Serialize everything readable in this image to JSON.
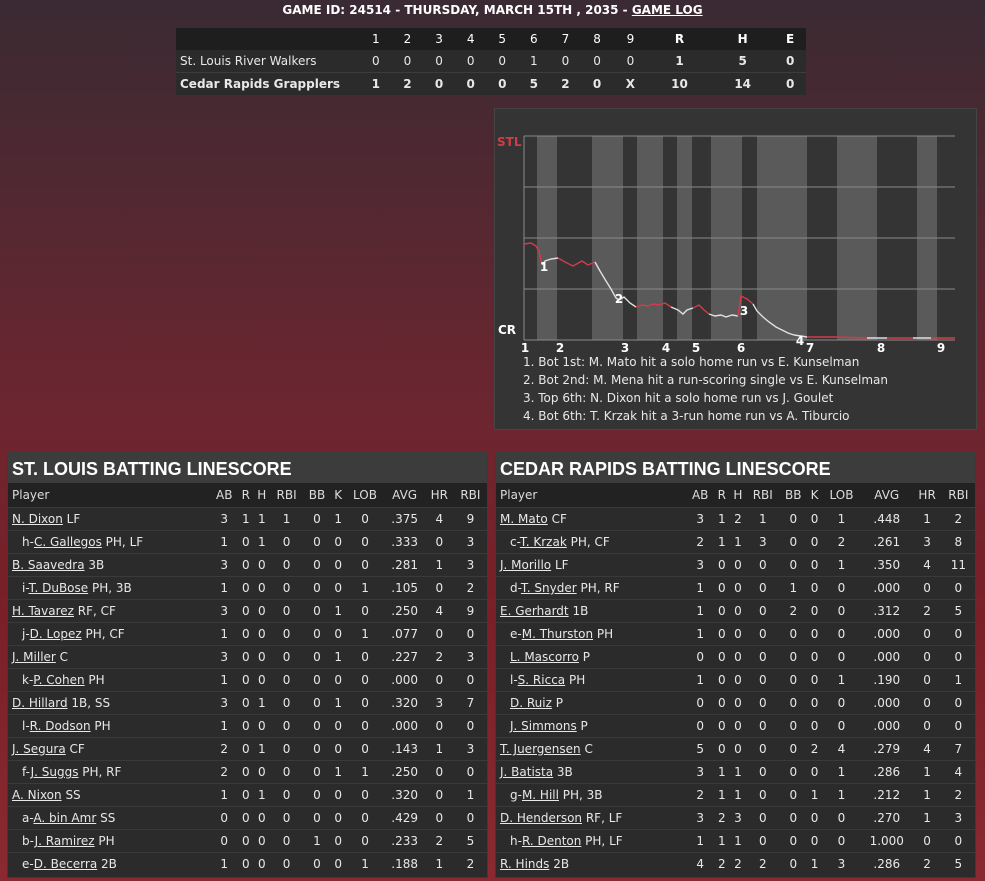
{
  "header": {
    "prefix": "GAME ID: 24514 - THURSDAY, MARCH 15TH , 2035 - ",
    "link": "GAME LOG"
  },
  "linescore": {
    "columns": [
      "1",
      "2",
      "3",
      "4",
      "5",
      "6",
      "7",
      "8",
      "9",
      "R",
      "H",
      "E"
    ],
    "rows": [
      {
        "team": "St. Louis River Walkers",
        "cells": [
          "0",
          "0",
          "0",
          "0",
          "0",
          "1",
          "0",
          "0",
          "0",
          "1",
          "5",
          "0"
        ]
      },
      {
        "team": "Cedar Rapids Grapplers",
        "cells": [
          "1",
          "2",
          "0",
          "0",
          "0",
          "5",
          "2",
          "0",
          "X",
          "10",
          "14",
          "0"
        ]
      }
    ]
  },
  "win_probability": {
    "top_label": "STL",
    "bottom_label": "CR",
    "innings": [
      "1",
      "2",
      "3",
      "4",
      "5",
      "6",
      "7",
      "8",
      "9"
    ],
    "markers": [
      "1",
      "2",
      "3",
      "4"
    ],
    "notes": [
      "1. Bot 1st: M. Mato hit a solo home run vs E. Kunselman",
      "2. Bot 2nd: M. Mena hit a run-scoring single vs E. Kunselman",
      "3. Top 6th: N. Dixon hit a solo home run vs J. Goulet",
      "4. Bot 6th: T. Krzak hit a 3-run home run vs A. Tiburcio"
    ],
    "colors": {
      "stl": "#d23c4a",
      "cr": "#e0e0e0"
    }
  },
  "columns": [
    "Player",
    "AB",
    "R",
    "H",
    "RBI",
    "BB",
    "K",
    "LOB",
    "AVG",
    "HR",
    "RBI"
  ],
  "stl": {
    "title": "ST. LOUIS BATTING LINESCORE",
    "rows": [
      {
        "pre": "",
        "name": "N. Dixon",
        "pos": " LF",
        "sub": false,
        "stats": [
          "3",
          "1",
          "1",
          "1",
          "0",
          "1",
          "0",
          ".375",
          "4",
          "9"
        ]
      },
      {
        "pre": "h-",
        "name": "C. Gallegos",
        "pos": " PH, LF",
        "sub": true,
        "stats": [
          "1",
          "0",
          "1",
          "0",
          "0",
          "0",
          "0",
          ".333",
          "0",
          "3"
        ]
      },
      {
        "pre": "",
        "name": "B. Saavedra",
        "pos": " 3B",
        "sub": false,
        "stats": [
          "3",
          "0",
          "0",
          "0",
          "0",
          "0",
          "0",
          ".281",
          "1",
          "3"
        ]
      },
      {
        "pre": "i-",
        "name": "T. DuBose",
        "pos": " PH, 3B",
        "sub": true,
        "stats": [
          "1",
          "0",
          "0",
          "0",
          "0",
          "0",
          "1",
          ".105",
          "0",
          "2"
        ]
      },
      {
        "pre": "",
        "name": "H. Tavarez",
        "pos": " RF, CF",
        "sub": false,
        "stats": [
          "3",
          "0",
          "0",
          "0",
          "0",
          "1",
          "0",
          ".250",
          "4",
          "9"
        ]
      },
      {
        "pre": "j-",
        "name": "D. Lopez",
        "pos": " PH, CF",
        "sub": true,
        "stats": [
          "1",
          "0",
          "0",
          "0",
          "0",
          "0",
          "1",
          ".077",
          "0",
          "0"
        ]
      },
      {
        "pre": "",
        "name": "J. Miller",
        "pos": " C",
        "sub": false,
        "stats": [
          "3",
          "0",
          "0",
          "0",
          "0",
          "1",
          "0",
          ".227",
          "2",
          "3"
        ]
      },
      {
        "pre": "k-",
        "name": "P. Cohen",
        "pos": " PH",
        "sub": true,
        "stats": [
          "1",
          "0",
          "0",
          "0",
          "0",
          "0",
          "0",
          ".000",
          "0",
          "0"
        ]
      },
      {
        "pre": "",
        "name": "D. Hillard",
        "pos": " 1B, SS",
        "sub": false,
        "stats": [
          "3",
          "0",
          "1",
          "0",
          "0",
          "1",
          "0",
          ".320",
          "3",
          "7"
        ]
      },
      {
        "pre": "l-",
        "name": "R. Dodson",
        "pos": " PH",
        "sub": true,
        "stats": [
          "1",
          "0",
          "0",
          "0",
          "0",
          "0",
          "0",
          ".000",
          "0",
          "0"
        ]
      },
      {
        "pre": "",
        "name": "J. Segura",
        "pos": " CF",
        "sub": false,
        "stats": [
          "2",
          "0",
          "1",
          "0",
          "0",
          "0",
          "0",
          ".143",
          "1",
          "3"
        ]
      },
      {
        "pre": "f-",
        "name": "J. Suggs",
        "pos": " PH, RF",
        "sub": true,
        "stats": [
          "2",
          "0",
          "0",
          "0",
          "0",
          "1",
          "1",
          ".250",
          "0",
          "0"
        ]
      },
      {
        "pre": "",
        "name": "A. Nixon",
        "pos": " SS",
        "sub": false,
        "stats": [
          "1",
          "0",
          "1",
          "0",
          "0",
          "0",
          "0",
          ".320",
          "0",
          "1"
        ]
      },
      {
        "pre": "a-",
        "name": "A. bin Amr",
        "pos": " SS",
        "sub": true,
        "stats": [
          "0",
          "0",
          "0",
          "0",
          "0",
          "0",
          "0",
          ".429",
          "0",
          "0"
        ]
      },
      {
        "pre": "b-",
        "name": "J. Ramirez",
        "pos": " PH",
        "sub": true,
        "stats": [
          "0",
          "0",
          "0",
          "0",
          "1",
          "0",
          "0",
          ".233",
          "2",
          "5"
        ]
      },
      {
        "pre": "e-",
        "name": "D. Becerra",
        "pos": " 2B",
        "sub": true,
        "stats": [
          "1",
          "0",
          "0",
          "0",
          "0",
          "0",
          "1",
          ".188",
          "1",
          "2"
        ]
      }
    ]
  },
  "cr": {
    "title": "CEDAR RAPIDS BATTING LINESCORE",
    "rows": [
      {
        "pre": "",
        "name": "M. Mato",
        "pos": " CF",
        "sub": false,
        "stats": [
          "3",
          "1",
          "2",
          "1",
          "0",
          "0",
          "1",
          ".448",
          "1",
          "2"
        ]
      },
      {
        "pre": "c-",
        "name": "T. Krzak",
        "pos": " PH, CF",
        "sub": true,
        "stats": [
          "2",
          "1",
          "1",
          "3",
          "0",
          "0",
          "2",
          ".261",
          "3",
          "8"
        ]
      },
      {
        "pre": "",
        "name": "J. Morillo",
        "pos": " LF",
        "sub": false,
        "stats": [
          "3",
          "0",
          "0",
          "0",
          "0",
          "0",
          "1",
          ".350",
          "4",
          "11"
        ]
      },
      {
        "pre": "d-",
        "name": "T. Snyder",
        "pos": " PH, RF",
        "sub": true,
        "stats": [
          "1",
          "0",
          "0",
          "0",
          "1",
          "0",
          "0",
          ".000",
          "0",
          "0"
        ]
      },
      {
        "pre": "",
        "name": "E. Gerhardt",
        "pos": " 1B",
        "sub": false,
        "stats": [
          "1",
          "0",
          "0",
          "0",
          "2",
          "0",
          "0",
          ".312",
          "2",
          "5"
        ]
      },
      {
        "pre": "e-",
        "name": "M. Thurston",
        "pos": " PH",
        "sub": true,
        "stats": [
          "1",
          "0",
          "0",
          "0",
          "0",
          "0",
          "0",
          ".000",
          "0",
          "0"
        ]
      },
      {
        "pre": "",
        "name": "L. Mascorro",
        "pos": " P",
        "sub": true,
        "stats": [
          "0",
          "0",
          "0",
          "0",
          "0",
          "0",
          "0",
          ".000",
          "0",
          "0"
        ]
      },
      {
        "pre": "l-",
        "name": "S. Ricca",
        "pos": " PH",
        "sub": true,
        "stats": [
          "1",
          "0",
          "0",
          "0",
          "0",
          "0",
          "1",
          ".190",
          "0",
          "1"
        ]
      },
      {
        "pre": "",
        "name": "D. Ruiz",
        "pos": " P",
        "sub": true,
        "stats": [
          "0",
          "0",
          "0",
          "0",
          "0",
          "0",
          "0",
          ".000",
          "0",
          "0"
        ]
      },
      {
        "pre": "",
        "name": "J. Simmons",
        "pos": " P",
        "sub": true,
        "stats": [
          "0",
          "0",
          "0",
          "0",
          "0",
          "0",
          "0",
          ".000",
          "0",
          "0"
        ]
      },
      {
        "pre": "",
        "name": "T. Juergensen",
        "pos": " C",
        "sub": false,
        "stats": [
          "5",
          "0",
          "0",
          "0",
          "0",
          "2",
          "4",
          ".279",
          "4",
          "7"
        ]
      },
      {
        "pre": "",
        "name": "J. Batista",
        "pos": " 3B",
        "sub": false,
        "stats": [
          "3",
          "1",
          "1",
          "0",
          "0",
          "0",
          "1",
          ".286",
          "1",
          "4"
        ]
      },
      {
        "pre": "g-",
        "name": "M. Hill",
        "pos": " PH, 3B",
        "sub": true,
        "stats": [
          "2",
          "1",
          "1",
          "0",
          "0",
          "1",
          "1",
          ".212",
          "1",
          "2"
        ]
      },
      {
        "pre": "",
        "name": "D. Henderson",
        "pos": " RF, LF",
        "sub": false,
        "stats": [
          "3",
          "2",
          "3",
          "0",
          "0",
          "0",
          "0",
          ".270",
          "1",
          "3"
        ]
      },
      {
        "pre": "h-",
        "name": "R. Denton",
        "pos": " PH, LF",
        "sub": true,
        "stats": [
          "1",
          "1",
          "1",
          "0",
          "0",
          "0",
          "0",
          "1.000",
          "0",
          "0"
        ]
      },
      {
        "pre": "",
        "name": "R. Hinds",
        "pos": " 2B",
        "sub": false,
        "stats": [
          "4",
          "2",
          "2",
          "2",
          "0",
          "1",
          "3",
          ".286",
          "2",
          "5"
        ]
      }
    ]
  }
}
